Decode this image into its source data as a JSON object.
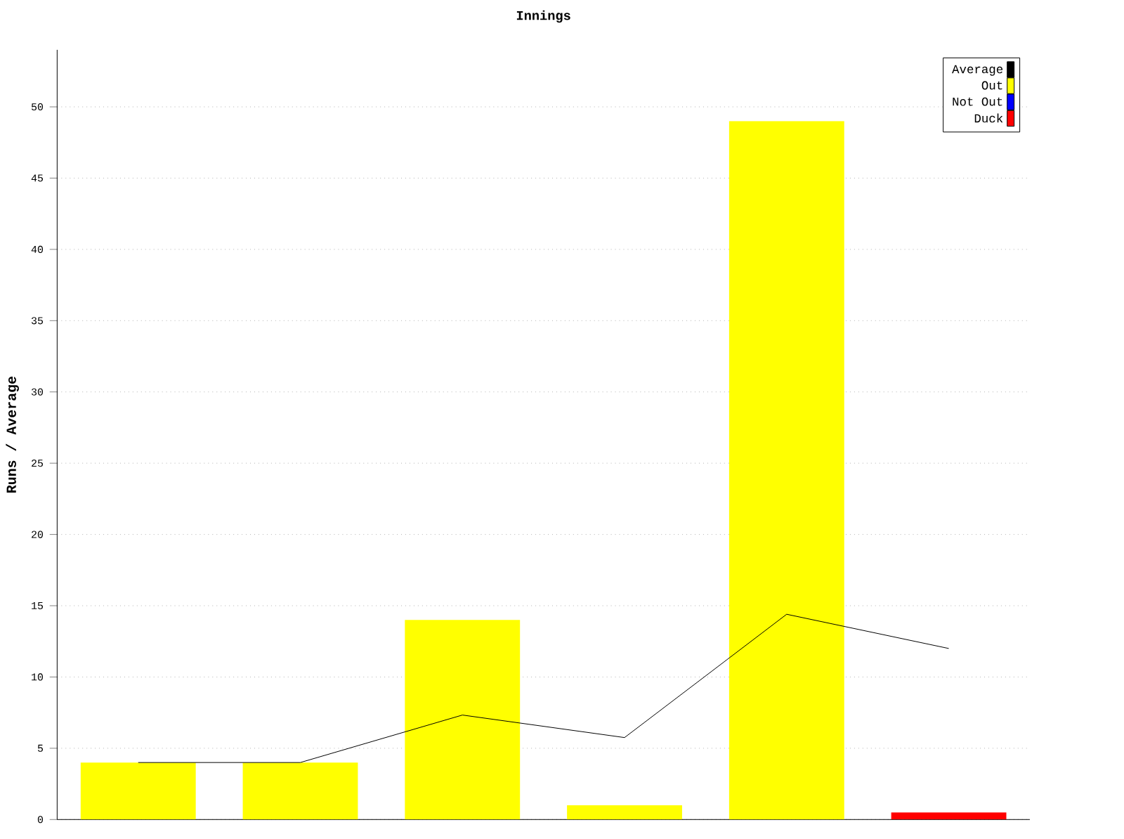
{
  "chart_data": {
    "type": "bar",
    "title": "Innings",
    "ylabel": "Runs / Average",
    "categories": [
      null,
      null,
      null,
      null,
      null,
      null
    ],
    "series": [
      {
        "name": "Average",
        "type": "line",
        "color": "#000000",
        "values": [
          4,
          4,
          7.33,
          5.75,
          14.4,
          12
        ]
      },
      {
        "name": "Out",
        "color": "#ffff00",
        "values": [
          4,
          4,
          14,
          1,
          49,
          null
        ]
      },
      {
        "name": "Not Out",
        "color": "#0000ff",
        "values": [
          null,
          null,
          null,
          null,
          null,
          null
        ]
      },
      {
        "name": "Duck",
        "color": "#ff0000",
        "values": [
          null,
          null,
          null,
          null,
          null,
          0.5
        ]
      }
    ],
    "ylim": [
      0,
      54
    ],
    "yticks": [
      0,
      5,
      10,
      15,
      20,
      25,
      30,
      35,
      40,
      45,
      50
    ],
    "grid": "y",
    "legend": "top right",
    "tick_labels": "y"
  }
}
